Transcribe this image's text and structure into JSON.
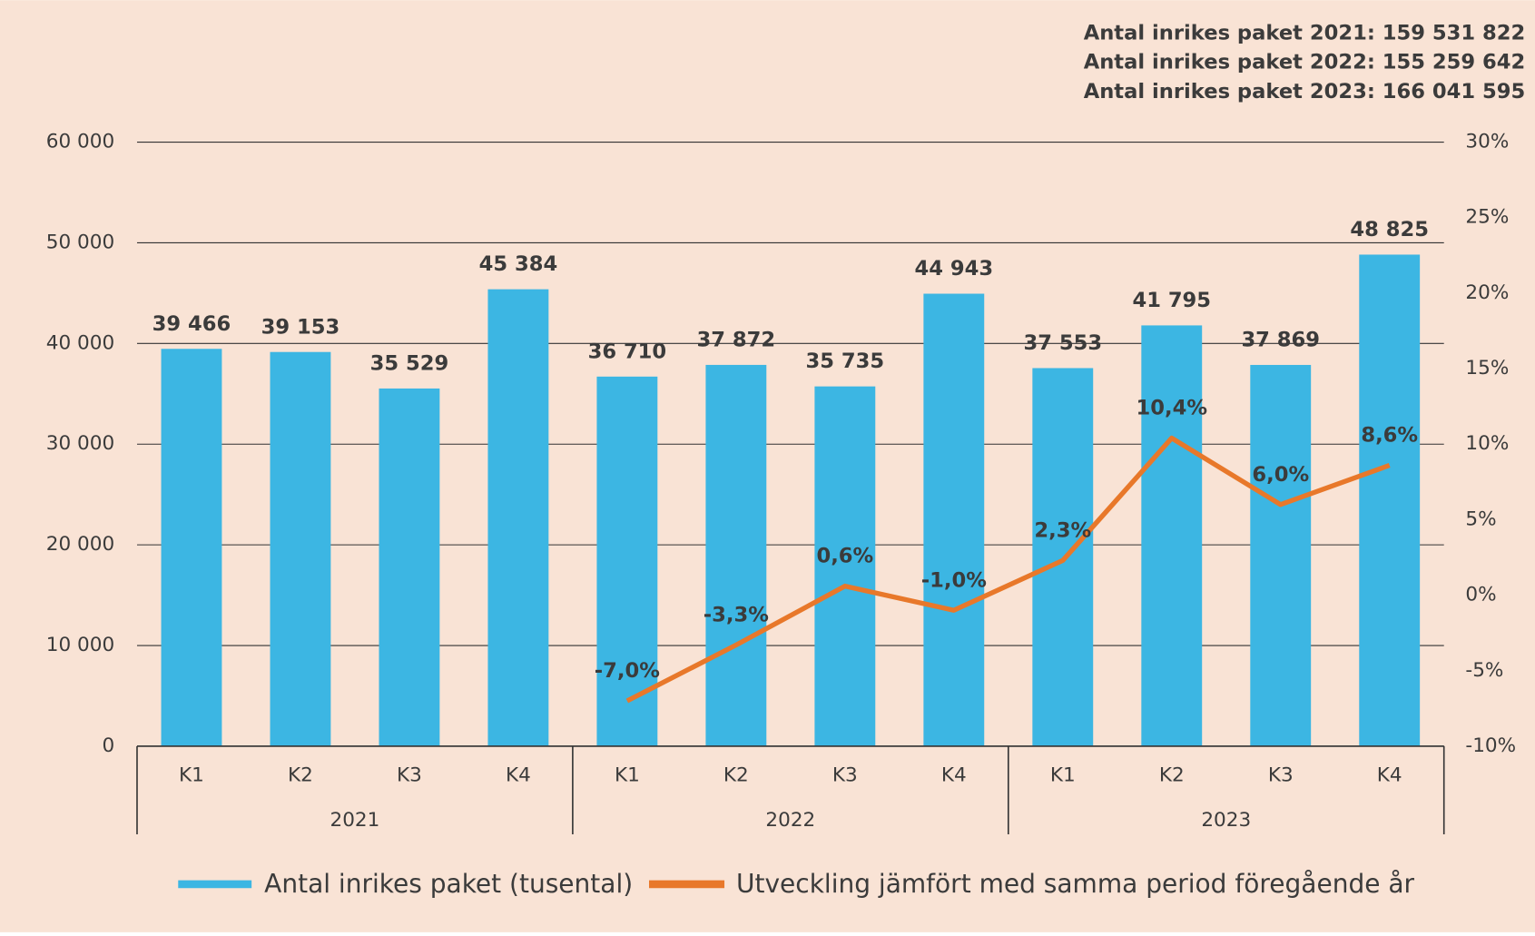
{
  "chart_data": {
    "type": "bar",
    "annotations": [
      "Antal inrikes paket 2021: 159 531 822",
      "Antal inrikes paket 2022: 155 259 642",
      "Antal inrikes paket 2023: 166 041 595"
    ],
    "categories": [
      "K1",
      "K2",
      "K3",
      "K4",
      "K1",
      "K2",
      "K3",
      "K4",
      "K1",
      "K2",
      "K3",
      "K4"
    ],
    "groups": [
      "2021",
      "2022",
      "2023"
    ],
    "series": [
      {
        "name": "Antal inrikes paket (tusental)",
        "color": "#3cb6e3",
        "type": "bar",
        "values": [
          39466,
          39153,
          35529,
          45384,
          36710,
          37872,
          35735,
          44943,
          37553,
          41795,
          37869,
          48825
        ],
        "value_labels": [
          "39 466",
          "39 153",
          "35 529",
          "45 384",
          "36 710",
          "37 872",
          "35 735",
          "44 943",
          "37 553",
          "41 795",
          "37 869",
          "48 825"
        ]
      },
      {
        "name": "Utveckling jämfört med samma period föregående år",
        "color": "#e8782a",
        "type": "line",
        "axis": "y2",
        "values": [
          null,
          null,
          null,
          null,
          -7.0,
          -3.3,
          0.6,
          -1.0,
          2.3,
          10.4,
          6.0,
          8.6
        ],
        "value_labels": [
          null,
          null,
          null,
          null,
          "-7,0%",
          "-3,3%",
          "0,6%",
          "-1,0%",
          "2,3%",
          "10,4%",
          "6,0%",
          "8,6%"
        ]
      }
    ],
    "ylim": [
      0,
      60000
    ],
    "yticks": [
      0,
      {
        "value": 10000,
        "label": "10 000"
      },
      {
        "value": 20000,
        "label": "20 000"
      },
      {
        "value": 30000,
        "label": "30 000"
      },
      {
        "value": 40000,
        "label": "40 000"
      },
      {
        "value": 50000,
        "label": "50 000"
      },
      {
        "value": 60000,
        "label": "60 000"
      }
    ],
    "y2lim": [
      -10,
      30
    ],
    "y2ticks": [
      {
        "value": -10,
        "label": "-10%"
      },
      {
        "value": -5,
        "label": "-5%"
      },
      {
        "value": 0,
        "label": "0%"
      },
      {
        "value": 5,
        "label": "5%"
      },
      {
        "value": 10,
        "label": "10%"
      },
      {
        "value": 15,
        "label": "15%"
      },
      {
        "value": 20,
        "label": "20%"
      },
      {
        "value": 25,
        "label": "25%"
      },
      {
        "value": 30,
        "label": "30%"
      }
    ],
    "grid": true,
    "legend": "bottom"
  }
}
